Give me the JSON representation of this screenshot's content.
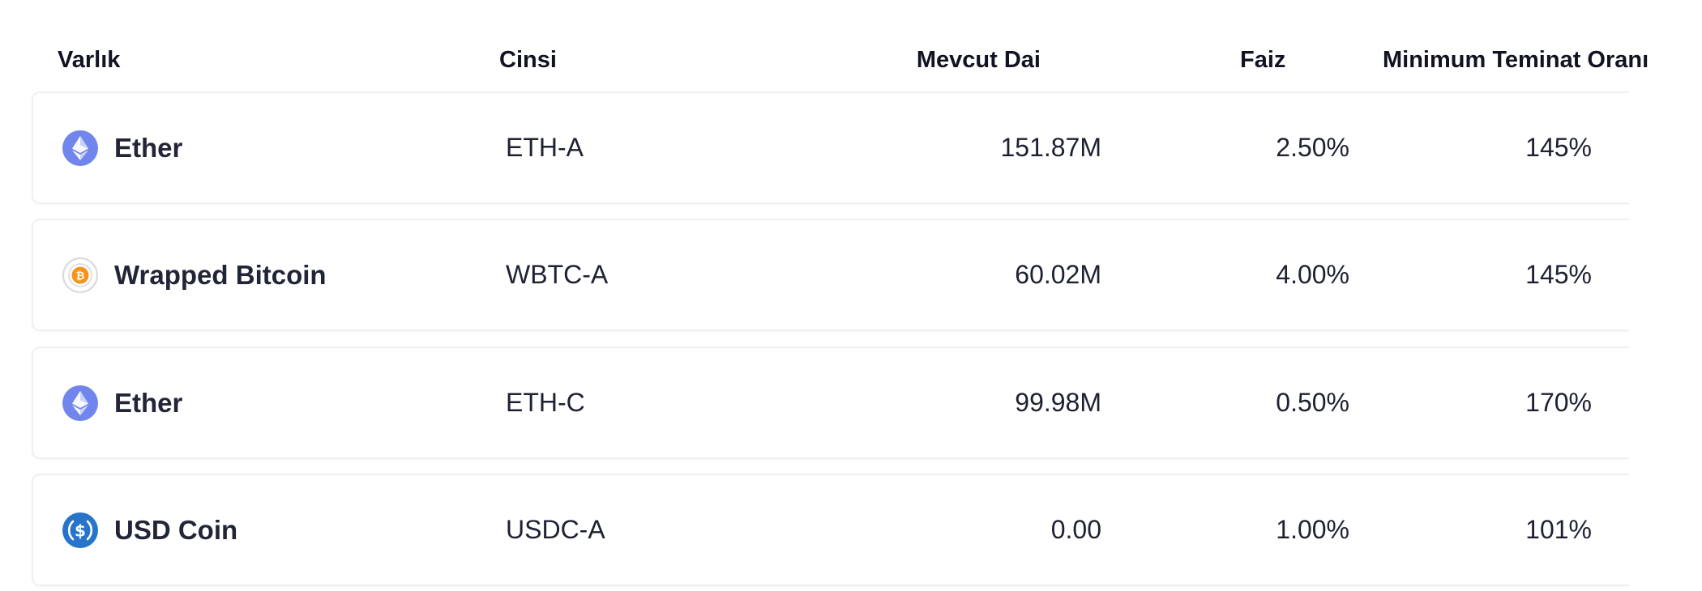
{
  "table": {
    "headers": {
      "asset": "Varlık",
      "type": "Cinsi",
      "available_dai": "Mevcut Dai",
      "fee": "Faiz",
      "min_collateral_ratio": "Minimum Teminat Oranı"
    },
    "rows": [
      {
        "icon": "ether-icon",
        "asset": "Ether",
        "type": "ETH-A",
        "available_dai": "151.87M",
        "fee": "2.50%",
        "min_collateral_ratio": "145%"
      },
      {
        "icon": "wrapped-bitcoin-icon",
        "asset": "Wrapped Bitcoin",
        "type": "WBTC-A",
        "available_dai": "60.02M",
        "fee": "4.00%",
        "min_collateral_ratio": "145%"
      },
      {
        "icon": "ether-icon",
        "asset": "Ether",
        "type": "ETH-C",
        "available_dai": "99.98M",
        "fee": "0.50%",
        "min_collateral_ratio": "170%"
      },
      {
        "icon": "usd-coin-icon",
        "asset": "USD Coin",
        "type": "USDC-A",
        "available_dai": "0.00",
        "fee": "1.00%",
        "min_collateral_ratio": "101%"
      }
    ]
  },
  "colors": {
    "ether": "#7086ec",
    "bitcoin": "#f7931a",
    "usdc": "#2775ca",
    "row_border": "#eef0f4",
    "text": "#1e2131"
  }
}
